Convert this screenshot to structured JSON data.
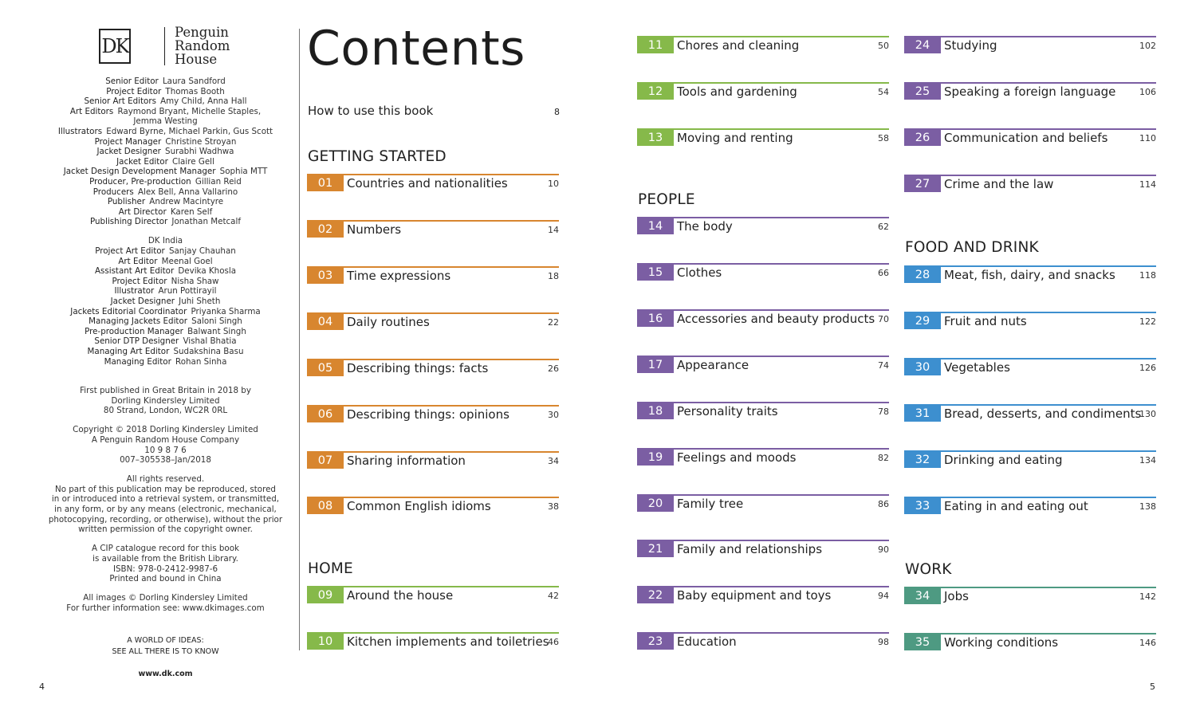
{
  "brand": {
    "logo_mark": "DK",
    "logo_lines": [
      "Penguin",
      "Random",
      "House"
    ]
  },
  "credits": {
    "uk_team": [
      {
        "role": "Senior Editor",
        "name": "Laura Sandford"
      },
      {
        "role": "Project Editor",
        "name": "Thomas Booth"
      },
      {
        "role": "Senior Art Editors",
        "name": "Amy Child, Anna Hall"
      },
      {
        "role": "Art Editors",
        "name": "Raymond Bryant, Michelle Staples,"
      },
      {
        "role": "",
        "name": "Jemma Westing"
      },
      {
        "role": "Illustrators",
        "name": "Edward Byrne, Michael Parkin, Gus Scott"
      },
      {
        "role": "Project Manager",
        "name": "Christine Stroyan"
      },
      {
        "role": "Jacket Designer",
        "name": "Surabhi Wadhwa"
      },
      {
        "role": "Jacket Editor",
        "name": "Claire Gell"
      },
      {
        "role": "Jacket Design Development Manager",
        "name": "Sophia MTT"
      },
      {
        "role": "Producer, Pre-production",
        "name": "Gillian Reid"
      },
      {
        "role": "Producers",
        "name": "Alex Bell, Anna Vallarino"
      },
      {
        "role": "Publisher",
        "name": "Andrew Macintyre"
      },
      {
        "role": "Art Director",
        "name": "Karen Self"
      },
      {
        "role": "Publishing Director",
        "name": "Jonathan Metcalf"
      }
    ],
    "india_heading": "DK India",
    "india_team": [
      {
        "role": "Project Art Editor",
        "name": "Sanjay Chauhan"
      },
      {
        "role": "Art Editor",
        "name": "Meenal Goel"
      },
      {
        "role": "Assistant Art Editor",
        "name": "Devika Khosla"
      },
      {
        "role": "Project Editor",
        "name": "Nisha Shaw"
      },
      {
        "role": "Illustrator",
        "name": "Arun Pottirayil"
      },
      {
        "role": "Jacket Designer",
        "name": "Juhi Sheth"
      },
      {
        "role": "Jackets Editorial Coordinator",
        "name": "Priyanka Sharma"
      },
      {
        "role": "Managing Jackets Editor",
        "name": "Saloni Singh"
      },
      {
        "role": "Pre-production Manager",
        "name": "Balwant Singh"
      },
      {
        "role": "Senior DTP Designer",
        "name": "Vishal Bhatia"
      },
      {
        "role": "Managing Art Editor",
        "name": "Sudakshina Basu"
      },
      {
        "role": "Managing Editor",
        "name": "Rohan Sinha"
      }
    ],
    "publication": [
      "First published in Great Britain in 2018 by",
      "Dorling Kindersley Limited",
      "80 Strand, London, WC2R 0RL"
    ],
    "copyright": [
      "Copyright © 2018 Dorling Kindersley Limited",
      "A Penguin Random House Company",
      "10 9 8 7 6",
      "007–305538–Jan/2018"
    ],
    "rights": [
      "All rights reserved.",
      "No part of this publication may be reproduced, stored",
      "in or introduced into a retrieval system, or transmitted,",
      "in any form, or by any means (electronic, mechanical,",
      "photocopying, recording, or otherwise), without the prior",
      "written permission of the copyright owner."
    ],
    "cip": [
      "A CIP catalogue record for this book",
      "is available from the British Library.",
      "ISBN: 978-0-2412-9987-6",
      "Printed and bound in China"
    ],
    "images": [
      "All images © Dorling Kindersley Limited",
      "For further information see: www.dkimages.com"
    ],
    "tagline_1": "A WORLD OF IDEAS:",
    "tagline_2": "SEE ALL THERE IS TO KNOW",
    "url": "www.dk.com"
  },
  "page_numbers": {
    "left": "4",
    "right": "5"
  },
  "contents": {
    "title": "Contents",
    "how_to": {
      "label": "How to use this book",
      "page": "8"
    },
    "sections": [
      {
        "title": "GETTING STARTED",
        "color": "#d8862f",
        "entries": [
          {
            "num": "01",
            "label": "Countries and nationalities",
            "page": "10"
          },
          {
            "num": "02",
            "label": "Numbers",
            "page": "14"
          },
          {
            "num": "03",
            "label": "Time expressions",
            "page": "18"
          },
          {
            "num": "04",
            "label": "Daily routines",
            "page": "22"
          },
          {
            "num": "05",
            "label": "Describing things: facts",
            "page": "26"
          },
          {
            "num": "06",
            "label": "Describing things: opinions",
            "page": "30"
          },
          {
            "num": "07",
            "label": "Sharing information",
            "page": "34"
          },
          {
            "num": "08",
            "label": "Common English idioms",
            "page": "38"
          }
        ]
      },
      {
        "title": "HOME",
        "color": "#86b94a",
        "entries": [
          {
            "num": "09",
            "label": "Around the house",
            "page": "42"
          },
          {
            "num": "10",
            "label": "Kitchen implements and toiletries",
            "page": "46"
          },
          {
            "num": "11",
            "label": "Chores and cleaning",
            "page": "50"
          },
          {
            "num": "12",
            "label": "Tools and gardening",
            "page": "54"
          },
          {
            "num": "13",
            "label": "Moving and renting",
            "page": "58"
          }
        ]
      },
      {
        "title": "PEOPLE",
        "color": "#7b5ea3",
        "entries": [
          {
            "num": "14",
            "label": "The body",
            "page": "62"
          },
          {
            "num": "15",
            "label": "Clothes",
            "page": "66"
          },
          {
            "num": "16",
            "label": "Accessories and beauty products",
            "page": "70"
          },
          {
            "num": "17",
            "label": "Appearance",
            "page": "74"
          },
          {
            "num": "18",
            "label": "Personality traits",
            "page": "78"
          },
          {
            "num": "19",
            "label": "Feelings and moods",
            "page": "82"
          },
          {
            "num": "20",
            "label": "Family tree",
            "page": "86"
          },
          {
            "num": "21",
            "label": "Family and relationships",
            "page": "90"
          },
          {
            "num": "22",
            "label": "Baby equipment and toys",
            "page": "94"
          },
          {
            "num": "23",
            "label": "Education",
            "page": "98"
          },
          {
            "num": "24",
            "label": "Studying",
            "page": "102"
          },
          {
            "num": "25",
            "label": "Speaking a foreign language",
            "page": "106"
          },
          {
            "num": "26",
            "label": "Communication and beliefs",
            "page": "110"
          },
          {
            "num": "27",
            "label": "Crime and the law",
            "page": "114"
          }
        ]
      },
      {
        "title": "FOOD AND DRINK",
        "color": "#3d8fcf",
        "entries": [
          {
            "num": "28",
            "label": "Meat, fish, dairy, and snacks",
            "page": "118"
          },
          {
            "num": "29",
            "label": "Fruit and nuts",
            "page": "122"
          },
          {
            "num": "30",
            "label": "Vegetables",
            "page": "126"
          },
          {
            "num": "31",
            "label": "Bread, desserts, and condiments",
            "page": "130"
          },
          {
            "num": "32",
            "label": "Drinking and eating",
            "page": "134"
          },
          {
            "num": "33",
            "label": "Eating in and eating out",
            "page": "138"
          }
        ]
      },
      {
        "title": "WORK",
        "color": "#4e9a82",
        "entries": [
          {
            "num": "34",
            "label": "Jobs",
            "page": "142"
          },
          {
            "num": "35",
            "label": "Working conditions",
            "page": "146"
          }
        ]
      }
    ]
  }
}
